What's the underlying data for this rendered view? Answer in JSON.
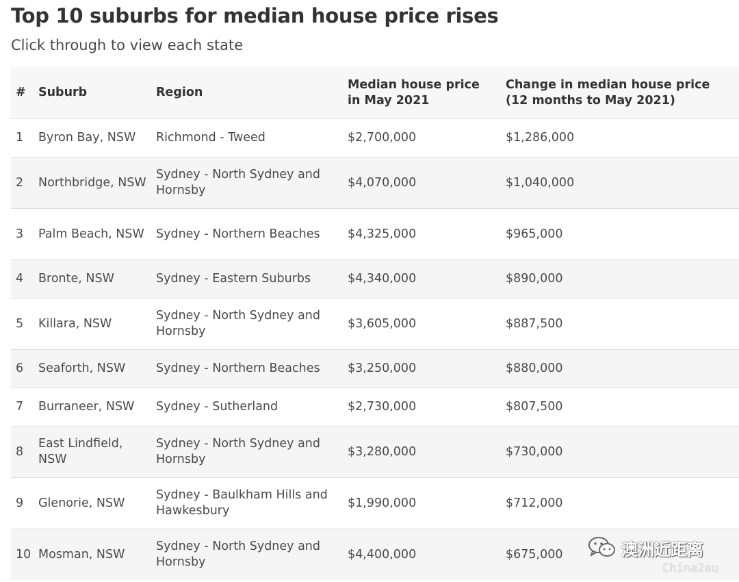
{
  "title": "Top 10 suburbs for median house price rises",
  "subtitle": "Click through to view each state",
  "table": {
    "headers": {
      "rank": "#",
      "suburb": "Suburb",
      "region": "Region",
      "median_line1": "Median house price",
      "median_line2": "in May 2021",
      "change_line1": "Change in median house price",
      "change_line2": "(12 months to May 2021)"
    },
    "rows": [
      {
        "rank": "1",
        "suburb": "Byron Bay, NSW",
        "region": "Richmond - Tweed",
        "median": "$2,700,000",
        "change": "$1,286,000"
      },
      {
        "rank": "2",
        "suburb": "Northbridge, NSW",
        "region": "Sydney - North Sydney and Hornsby",
        "median": "$4,070,000",
        "change": "$1,040,000"
      },
      {
        "rank": "3",
        "suburb": "Palm Beach, NSW",
        "region": "Sydney - Northern Beaches",
        "median": "$4,325,000",
        "change": "$965,000"
      },
      {
        "rank": "4",
        "suburb": "Bronte, NSW",
        "region": "Sydney - Eastern Suburbs",
        "median": "$4,340,000",
        "change": "$890,000"
      },
      {
        "rank": "5",
        "suburb": "Killara, NSW",
        "region": "Sydney - North Sydney and Hornsby",
        "median": "$3,605,000",
        "change": "$887,500"
      },
      {
        "rank": "6",
        "suburb": "Seaforth, NSW",
        "region": "Sydney - Northern Beaches",
        "median": "$3,250,000",
        "change": "$880,000"
      },
      {
        "rank": "7",
        "suburb": "Burraneer, NSW",
        "region": "Sydney - Sutherland",
        "median": "$2,730,000",
        "change": "$807,500"
      },
      {
        "rank": "8",
        "suburb": "East Lindfield, NSW",
        "region": "Sydney - North Sydney and Hornsby",
        "median": "$3,280,000",
        "change": "$730,000"
      },
      {
        "rank": "9",
        "suburb": "Glenorie, NSW",
        "region": "Sydney - Baulkham Hills and Hawkesbury",
        "median": "$1,990,000",
        "change": "$712,000"
      },
      {
        "rank": "10",
        "suburb": "Mosman, NSW",
        "region": "Sydney - North Sydney and Hornsby",
        "median": "$4,400,000",
        "change": "$675,000"
      }
    ]
  },
  "watermark": {
    "name": "澳洲近距离",
    "id": "China2au",
    "icon": "wechat-icon"
  }
}
